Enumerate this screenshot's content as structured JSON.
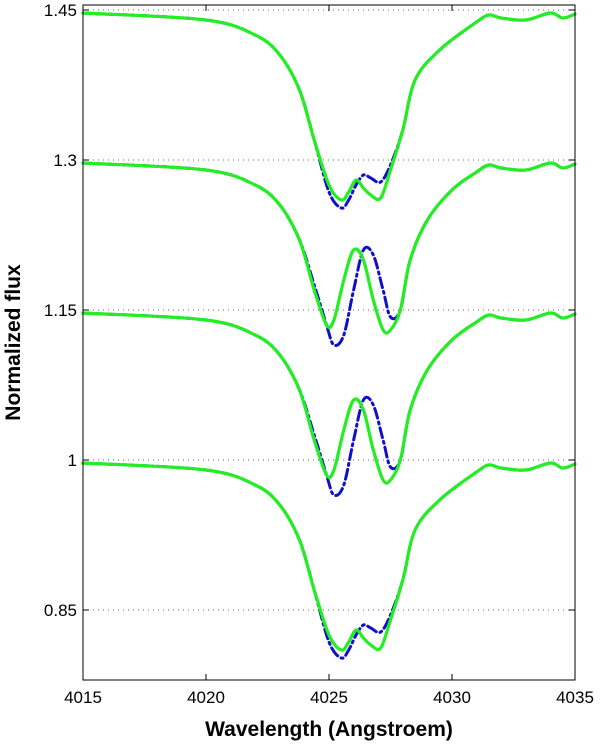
{
  "chart_data": {
    "type": "line",
    "xlabel": "Wavelength (Angstroem)",
    "ylabel": "Normalized flux",
    "xlim": [
      4015,
      4035
    ],
    "ylim": [
      0.78,
      1.455
    ],
    "xticks": [
      4015,
      4020,
      4025,
      4030,
      4035
    ],
    "yticks": [
      0.85,
      1,
      1.15,
      1.3,
      1.45
    ],
    "xtick_labels": [
      "4015",
      "4020",
      "4025",
      "4030",
      "4035"
    ],
    "ytick_labels": [
      "0.85",
      "1",
      "1.15",
      "1.3",
      "1.45"
    ],
    "grid": "horizontal-dotted",
    "legend": "none",
    "colors": {
      "observed": "#1010cc",
      "model": "#22ee22",
      "grid": "#666666"
    },
    "series": [
      {
        "style": "dash-dot",
        "color": "#1010cc",
        "x": [
          4015,
          4020,
          4022,
          4023,
          4023.8,
          4024.4,
          4025.0,
          4025.5,
          4025.8,
          4026.1,
          4026.4,
          4026.7,
          4027.1,
          4027.5,
          4028.0,
          4028.5,
          4029.5,
          4031,
          4031.5,
          4032,
          4033,
          4034,
          4034.5,
          4035
        ],
        "y": [
          0.997,
          0.99,
          0.975,
          0.955,
          0.92,
          0.87,
          0.818,
          0.802,
          0.81,
          0.825,
          0.835,
          0.832,
          0.828,
          0.845,
          0.88,
          0.93,
          0.96,
          0.988,
          0.995,
          0.992,
          0.99,
          0.997,
          0.992,
          0.996
        ]
      },
      {
        "style": "solid",
        "color": "#22ee22",
        "x": [
          4015,
          4020,
          4022,
          4023,
          4023.8,
          4024.4,
          4025.0,
          4025.5,
          4025.8,
          4026.1,
          4026.4,
          4026.7,
          4027.1,
          4027.5,
          4028.0,
          4028.5,
          4029.5,
          4031,
          4031.5,
          4032,
          4033,
          4034,
          4034.5,
          4035
        ],
        "y": [
          0.997,
          0.99,
          0.975,
          0.955,
          0.92,
          0.87,
          0.825,
          0.81,
          0.818,
          0.83,
          0.822,
          0.815,
          0.812,
          0.84,
          0.88,
          0.93,
          0.96,
          0.988,
          0.995,
          0.992,
          0.99,
          0.997,
          0.992,
          0.996
        ]
      },
      {
        "style": "dash-dot",
        "color": "#1010cc",
        "x": [
          4015,
          4020,
          4022,
          4023,
          4023.8,
          4024.4,
          4024.9,
          4025.2,
          4025.6,
          4026.0,
          4026.4,
          4026.8,
          4027.2,
          4027.5,
          4027.9,
          4028.3,
          4029,
          4030,
          4031,
          4031.5,
          4032,
          4033,
          4034,
          4034.5,
          4035
        ],
        "y": [
          1.147,
          1.14,
          1.125,
          1.105,
          1.07,
          1.025,
          0.985,
          0.965,
          0.975,
          1.02,
          1.06,
          1.055,
          1.02,
          0.993,
          1.0,
          1.05,
          1.09,
          1.12,
          1.138,
          1.145,
          1.142,
          1.14,
          1.147,
          1.142,
          1.146
        ]
      },
      {
        "style": "solid",
        "color": "#22ee22",
        "x": [
          4015,
          4020,
          4022,
          4023,
          4023.8,
          4024.4,
          4024.9,
          4025.2,
          4025.6,
          4026.0,
          4026.4,
          4026.8,
          4027.2,
          4027.5,
          4027.9,
          4028.3,
          4029,
          4030,
          4031,
          4031.5,
          4032,
          4033,
          4034,
          4034.5,
          4035
        ],
        "y": [
          1.147,
          1.14,
          1.125,
          1.105,
          1.07,
          1.02,
          0.985,
          0.99,
          1.03,
          1.06,
          1.05,
          1.01,
          0.98,
          0.98,
          1.0,
          1.05,
          1.09,
          1.12,
          1.138,
          1.145,
          1.142,
          1.14,
          1.147,
          1.142,
          1.146
        ]
      },
      {
        "style": "dash-dot",
        "color": "#1010cc",
        "x": [
          4015,
          4020,
          4022,
          4023,
          4023.8,
          4024.4,
          4024.9,
          4025.2,
          4025.6,
          4026.0,
          4026.4,
          4026.8,
          4027.2,
          4027.5,
          4027.9,
          4028.3,
          4029,
          4030,
          4031,
          4031.5,
          4032,
          4033,
          4034,
          4034.5,
          4035
        ],
        "y": [
          1.297,
          1.29,
          1.275,
          1.255,
          1.22,
          1.175,
          1.135,
          1.115,
          1.125,
          1.17,
          1.21,
          1.205,
          1.17,
          1.143,
          1.15,
          1.2,
          1.24,
          1.27,
          1.288,
          1.295,
          1.292,
          1.29,
          1.297,
          1.292,
          1.296
        ]
      },
      {
        "style": "solid",
        "color": "#22ee22",
        "x": [
          4015,
          4020,
          4022,
          4023,
          4023.8,
          4024.4,
          4024.9,
          4025.2,
          4025.6,
          4026.0,
          4026.4,
          4026.8,
          4027.2,
          4027.5,
          4027.9,
          4028.3,
          4029,
          4030,
          4031,
          4031.5,
          4032,
          4033,
          4034,
          4034.5,
          4035
        ],
        "y": [
          1.297,
          1.29,
          1.275,
          1.255,
          1.22,
          1.17,
          1.135,
          1.14,
          1.18,
          1.21,
          1.2,
          1.16,
          1.13,
          1.13,
          1.15,
          1.2,
          1.24,
          1.27,
          1.288,
          1.295,
          1.292,
          1.29,
          1.297,
          1.292,
          1.296
        ]
      },
      {
        "style": "dash-dot",
        "color": "#1010cc",
        "x": [
          4015,
          4020,
          4022,
          4023,
          4023.8,
          4024.4,
          4025.0,
          4025.5,
          4025.8,
          4026.1,
          4026.4,
          4026.7,
          4027.1,
          4027.5,
          4028.0,
          4028.5,
          4029.5,
          4031,
          4031.5,
          4032,
          4033,
          4034,
          4034.5,
          4035
        ],
        "y": [
          1.447,
          1.44,
          1.425,
          1.405,
          1.37,
          1.32,
          1.268,
          1.252,
          1.26,
          1.275,
          1.285,
          1.282,
          1.278,
          1.295,
          1.33,
          1.38,
          1.41,
          1.438,
          1.445,
          1.442,
          1.44,
          1.447,
          1.442,
          1.446
        ]
      },
      {
        "style": "solid",
        "color": "#22ee22",
        "x": [
          4015,
          4020,
          4022,
          4023,
          4023.8,
          4024.4,
          4025.0,
          4025.5,
          4025.8,
          4026.1,
          4026.4,
          4026.7,
          4027.1,
          4027.5,
          4028.0,
          4028.5,
          4029.5,
          4031,
          4031.5,
          4032,
          4033,
          4034,
          4034.5,
          4035
        ],
        "y": [
          1.447,
          1.44,
          1.425,
          1.405,
          1.37,
          1.32,
          1.275,
          1.26,
          1.268,
          1.28,
          1.272,
          1.265,
          1.262,
          1.29,
          1.33,
          1.38,
          1.41,
          1.438,
          1.445,
          1.442,
          1.44,
          1.447,
          1.442,
          1.446
        ]
      }
    ]
  }
}
